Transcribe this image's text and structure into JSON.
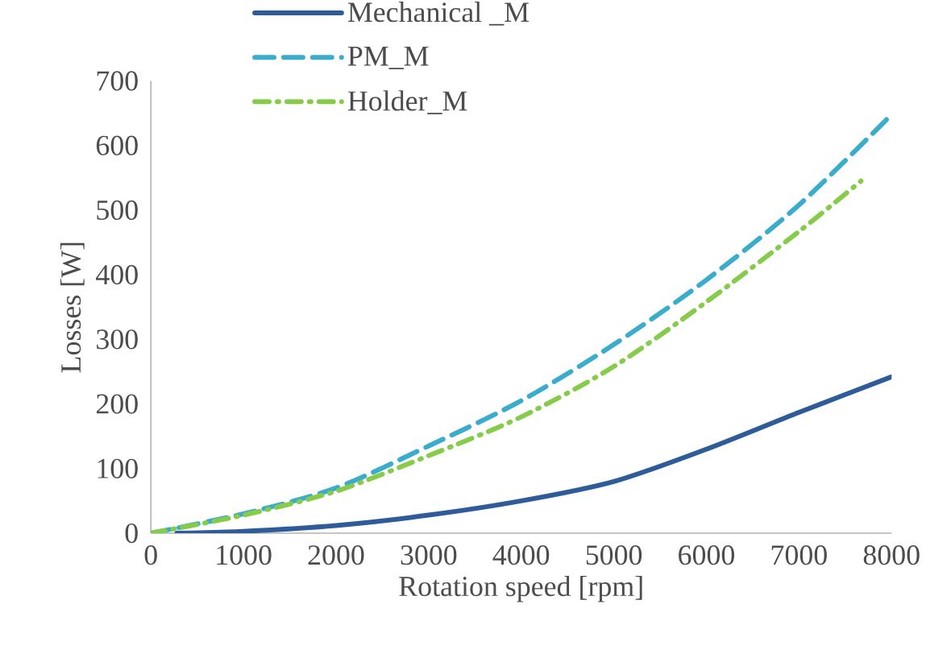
{
  "chart_data": {
    "type": "line",
    "xlabel": "Rotation speed [rpm]",
    "ylabel": "Losses [W]",
    "xlim": [
      0,
      8000
    ],
    "ylim": [
      0,
      700
    ],
    "xticks": [
      0,
      1000,
      2000,
      3000,
      4000,
      5000,
      6000,
      7000,
      8000
    ],
    "yticks": [
      0,
      100,
      200,
      300,
      400,
      500,
      600,
      700
    ],
    "grid": false,
    "legend": "top",
    "marker": "none",
    "series": [
      {
        "name": "Mechanical _M",
        "color": "#2e5c9a",
        "line_style": "solid",
        "x": [
          280,
          1000,
          2000,
          3000,
          4000,
          5000,
          6000,
          7000,
          8000
        ],
        "values": [
          0,
          3,
          12,
          28,
          50,
          80,
          130,
          187,
          242
        ]
      },
      {
        "name": "PM_M",
        "color": "#3aaccc",
        "line_style": "dashed",
        "x": [
          0,
          1000,
          2000,
          3000,
          4000,
          5000,
          6000,
          7000,
          8000
        ],
        "values": [
          0,
          30,
          70,
          135,
          205,
          292,
          392,
          508,
          648
        ]
      },
      {
        "name": "Holder_M",
        "color": "#86cc4a",
        "line_style": "dashdotted",
        "x": [
          0,
          1000,
          2000,
          3000,
          4000,
          5000,
          6000,
          7000,
          7670
        ],
        "values": [
          0,
          28,
          65,
          120,
          180,
          258,
          358,
          467,
          545
        ]
      }
    ]
  }
}
